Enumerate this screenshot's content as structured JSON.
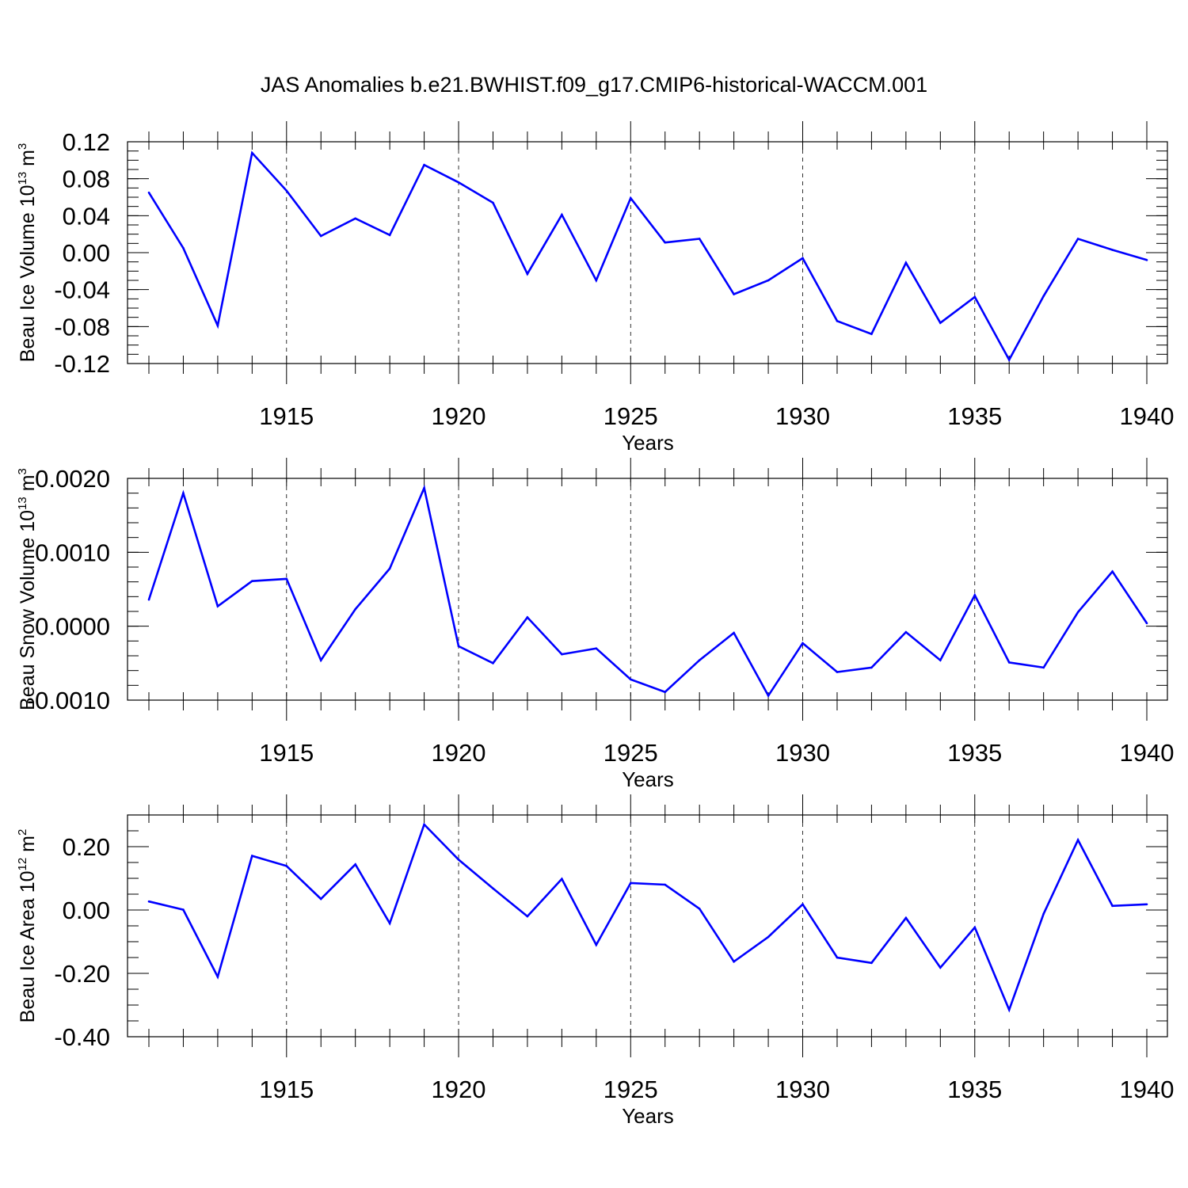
{
  "title": "JAS Anomalies b.e21.BWHIST.f09_g17.CMIP6-historical-WACCM.001",
  "chart_data": [
    {
      "type": "line",
      "title": "JAS Anomalies b.e21.BWHIST.f09_g17.CMIP6-historical-WACCM.001",
      "ylabel": {
        "text": "Beau Ice Volume 10",
        "sup1": "13",
        "unit": " m",
        "sup2": "3"
      },
      "xlabel": "Years",
      "x": [
        1911,
        1912,
        1913,
        1914,
        1915,
        1916,
        1917,
        1918,
        1919,
        1920,
        1921,
        1922,
        1923,
        1924,
        1925,
        1926,
        1927,
        1928,
        1929,
        1930,
        1931,
        1932,
        1933,
        1934,
        1935,
        1936,
        1937,
        1938,
        1939,
        1940
      ],
      "values": [
        0.065,
        0.005,
        -0.079,
        0.108,
        0.067,
        0.018,
        0.037,
        0.019,
        0.095,
        0.076,
        0.054,
        -0.023,
        0.041,
        -0.03,
        0.059,
        0.011,
        0.015,
        -0.045,
        -0.03,
        -0.006,
        -0.074,
        -0.088,
        -0.011,
        -0.076,
        -0.048,
        -0.116,
        -0.047,
        0.015,
        0.003,
        -0.008
      ],
      "xlim": [
        1911,
        1940
      ],
      "ylim": [
        -0.12,
        0.12
      ],
      "yticks": [
        -0.12,
        -0.08,
        -0.04,
        0.0,
        0.04,
        0.08,
        0.12
      ],
      "yticklabels": [
        "-0.12",
        "-0.08",
        "-0.04",
        "0.00",
        "0.04",
        "0.08",
        "0.12"
      ],
      "yminor": 0.01,
      "xticks": [
        1915,
        1920,
        1925,
        1930,
        1935,
        1940
      ],
      "xticklabels": [
        "1915",
        "1920",
        "1925",
        "1930",
        "1935",
        "1940"
      ],
      "line_color": "#0000ff"
    },
    {
      "type": "line",
      "ylabel": {
        "text": "Beau Snow Volume 10",
        "sup1": "13",
        "unit": " m",
        "sup2": "3"
      },
      "xlabel": "Years",
      "x": [
        1911,
        1912,
        1913,
        1914,
        1915,
        1916,
        1917,
        1918,
        1919,
        1920,
        1921,
        1922,
        1923,
        1924,
        1925,
        1926,
        1927,
        1928,
        1929,
        1930,
        1931,
        1932,
        1933,
        1934,
        1935,
        1936,
        1937,
        1938,
        1939,
        1940
      ],
      "values": [
        0.00036,
        0.0018,
        0.00027,
        0.00061,
        0.00064,
        -0.00046,
        0.00023,
        0.00078,
        0.00187,
        -0.00027,
        -0.0005,
        0.00012,
        -0.00038,
        -0.0003,
        -0.00072,
        -0.00089,
        -0.00046,
        -9e-05,
        -0.00094,
        -0.00023,
        -0.00062,
        -0.00056,
        -8e-05,
        -0.00046,
        0.00042,
        -0.00049,
        -0.00056,
        0.00019,
        0.00074,
        4e-05
      ],
      "xlim": [
        1911,
        1940
      ],
      "ylim": [
        -0.001,
        0.002
      ],
      "yticks": [
        -0.001,
        0.0,
        0.001,
        0.002
      ],
      "yticklabels": [
        "-0.0010",
        "0.0000",
        "0.0010",
        "0.0020"
      ],
      "yminor": 0.0002,
      "xticks": [
        1915,
        1920,
        1925,
        1930,
        1935,
        1940
      ],
      "xticklabels": [
        "1915",
        "1920",
        "1925",
        "1930",
        "1935",
        "1940"
      ],
      "line_color": "#0000ff"
    },
    {
      "type": "line",
      "ylabel": {
        "text": "Beau Ice Area 10",
        "sup1": "12",
        "unit": " m",
        "sup2": "2"
      },
      "xlabel": "Years",
      "x": [
        1911,
        1912,
        1913,
        1914,
        1915,
        1916,
        1917,
        1918,
        1919,
        1920,
        1921,
        1922,
        1923,
        1924,
        1925,
        1926,
        1927,
        1928,
        1929,
        1930,
        1931,
        1932,
        1933,
        1934,
        1935,
        1936,
        1937,
        1938,
        1939,
        1940
      ],
      "values": [
        0.027,
        0.001,
        -0.211,
        0.171,
        0.139,
        0.035,
        0.144,
        -0.042,
        0.27,
        0.159,
        0.068,
        -0.02,
        0.098,
        -0.11,
        0.085,
        0.08,
        0.004,
        -0.163,
        -0.085,
        0.018,
        -0.15,
        -0.167,
        -0.025,
        -0.182,
        -0.055,
        -0.315,
        -0.012,
        0.221,
        0.013,
        0.018
      ],
      "xlim": [
        1911,
        1940
      ],
      "ylim": [
        -0.4,
        0.3
      ],
      "yticks": [
        -0.4,
        -0.2,
        0.0,
        0.2
      ],
      "yticklabels": [
        "-0.40",
        "-0.20",
        "0.00",
        "0.20"
      ],
      "yminor": 0.05,
      "xticks": [
        1915,
        1920,
        1925,
        1930,
        1935,
        1940
      ],
      "xticklabels": [
        "1915",
        "1920",
        "1925",
        "1930",
        "1935",
        "1940"
      ],
      "line_color": "#0000ff"
    }
  ]
}
